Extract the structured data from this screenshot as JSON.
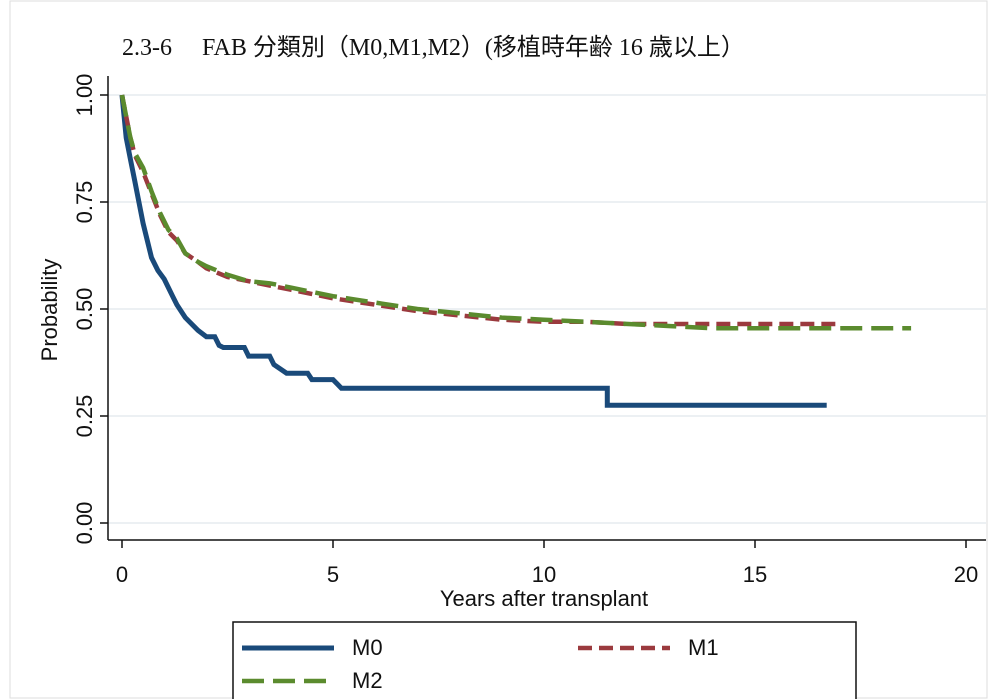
{
  "chart_data": {
    "type": "line",
    "title": "2.3-6　 FAB 分類別（M0,M1,M2）(移植時年齢 16 歳以上）",
    "xlabel": "Years after transplant",
    "ylabel": "Probability",
    "xlim": [
      0,
      20
    ],
    "ylim": [
      0,
      1
    ],
    "xticks": [
      0,
      5,
      10,
      15,
      20
    ],
    "xtick_labels": [
      "0",
      "5",
      "10",
      "15",
      "20"
    ],
    "yticks": [
      0,
      0.25,
      0.5,
      0.75,
      1.0
    ],
    "ytick_labels": [
      "0.00",
      "0.25",
      "0.50",
      "0.75",
      "1.00"
    ],
    "grid": "horizontal",
    "legend_position": "bottom",
    "series": [
      {
        "name": "M0",
        "color": "#1a4a7a",
        "style": "solid",
        "points": [
          [
            0,
            1.0
          ],
          [
            0.05,
            0.95
          ],
          [
            0.1,
            0.9
          ],
          [
            0.2,
            0.85
          ],
          [
            0.3,
            0.8
          ],
          [
            0.4,
            0.75
          ],
          [
            0.5,
            0.7
          ],
          [
            0.6,
            0.66
          ],
          [
            0.7,
            0.62
          ],
          [
            0.85,
            0.59
          ],
          [
            1.0,
            0.57
          ],
          [
            1.1,
            0.55
          ],
          [
            1.2,
            0.53
          ],
          [
            1.3,
            0.51
          ],
          [
            1.5,
            0.48
          ],
          [
            1.8,
            0.45
          ],
          [
            2.0,
            0.435
          ],
          [
            2.2,
            0.435
          ],
          [
            2.3,
            0.415
          ],
          [
            2.4,
            0.41
          ],
          [
            2.9,
            0.41
          ],
          [
            3.0,
            0.39
          ],
          [
            3.5,
            0.39
          ],
          [
            3.6,
            0.37
          ],
          [
            3.9,
            0.35
          ],
          [
            4.4,
            0.35
          ],
          [
            4.5,
            0.335
          ],
          [
            5.0,
            0.335
          ],
          [
            5.1,
            0.325
          ],
          [
            5.2,
            0.315
          ],
          [
            11.5,
            0.315
          ],
          [
            11.5,
            0.275
          ],
          [
            16.7,
            0.275
          ]
        ]
      },
      {
        "name": "M1",
        "color": "#9b3a3e",
        "style": "dashed",
        "points": [
          [
            0,
            1.0
          ],
          [
            0.1,
            0.95
          ],
          [
            0.2,
            0.9
          ],
          [
            0.3,
            0.86
          ],
          [
            0.5,
            0.82
          ],
          [
            0.7,
            0.77
          ],
          [
            0.9,
            0.72
          ],
          [
            1.1,
            0.68
          ],
          [
            1.3,
            0.66
          ],
          [
            1.5,
            0.63
          ],
          [
            1.8,
            0.61
          ],
          [
            2.0,
            0.595
          ],
          [
            2.5,
            0.575
          ],
          [
            3.0,
            0.565
          ],
          [
            3.5,
            0.555
          ],
          [
            4.0,
            0.545
          ],
          [
            5.0,
            0.525
          ],
          [
            6.0,
            0.51
          ],
          [
            7.0,
            0.495
          ],
          [
            8.0,
            0.485
          ],
          [
            9.0,
            0.475
          ],
          [
            10.0,
            0.47
          ],
          [
            11.0,
            0.47
          ],
          [
            12.0,
            0.465
          ],
          [
            13.0,
            0.465
          ],
          [
            14.0,
            0.465
          ],
          [
            17.0,
            0.465
          ]
        ]
      },
      {
        "name": "M2",
        "color": "#5b8b2e",
        "style": "long-dashed",
        "points": [
          [
            0,
            1.0
          ],
          [
            0.1,
            0.95
          ],
          [
            0.2,
            0.9
          ],
          [
            0.3,
            0.865
          ],
          [
            0.5,
            0.83
          ],
          [
            0.7,
            0.775
          ],
          [
            0.9,
            0.725
          ],
          [
            1.1,
            0.685
          ],
          [
            1.3,
            0.665
          ],
          [
            1.5,
            0.63
          ],
          [
            1.8,
            0.61
          ],
          [
            2.0,
            0.6
          ],
          [
            2.5,
            0.58
          ],
          [
            3.0,
            0.565
          ],
          [
            3.5,
            0.56
          ],
          [
            4.0,
            0.55
          ],
          [
            5.0,
            0.53
          ],
          [
            6.0,
            0.515
          ],
          [
            7.0,
            0.5
          ],
          [
            8.0,
            0.49
          ],
          [
            9.0,
            0.48
          ],
          [
            10.0,
            0.475
          ],
          [
            11.0,
            0.47
          ],
          [
            12.0,
            0.465
          ],
          [
            13.0,
            0.46
          ],
          [
            14.0,
            0.455
          ],
          [
            18.7,
            0.455
          ]
        ]
      }
    ]
  }
}
